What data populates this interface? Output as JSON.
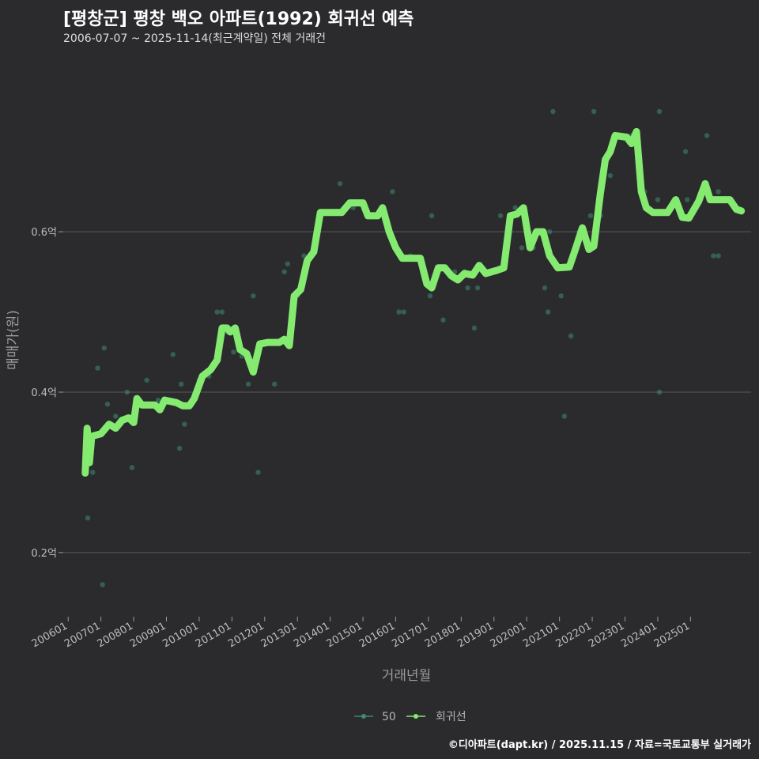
{
  "colors": {
    "background": "#2b2b2d",
    "grid": "#5a5a5a",
    "curve": "#84ea70",
    "points": "#3f8a72"
  },
  "chart_data": {
    "type": "line",
    "title": "[평창군] 평창 백오 아파트(1992) 회귀선 예측",
    "subtitle": "2006-07-07 ~ 2025-11-14(최근계약일) 전체 거래건",
    "xlabel": "거래년월",
    "ylabel": "매매가(원)",
    "xlim": [
      2005.85,
      2026.85
    ],
    "ylim": [
      0.12,
      0.82
    ],
    "y_ticks": [
      {
        "value": 0.2,
        "label": "0.2억"
      },
      {
        "value": 0.4,
        "label": "0.4억"
      },
      {
        "value": 0.6,
        "label": "0.6억"
      }
    ],
    "x_ticks": [
      {
        "value": 2006,
        "label": "200601"
      },
      {
        "value": 2007,
        "label": "200701"
      },
      {
        "value": 2008,
        "label": "200801"
      },
      {
        "value": 2009,
        "label": "200901"
      },
      {
        "value": 2010,
        "label": "201001"
      },
      {
        "value": 2011,
        "label": "201101"
      },
      {
        "value": 2012,
        "label": "201201"
      },
      {
        "value": 2013,
        "label": "201301"
      },
      {
        "value": 2014,
        "label": "201401"
      },
      {
        "value": 2015,
        "label": "201501"
      },
      {
        "value": 2016,
        "label": "201601"
      },
      {
        "value": 2017,
        "label": "201701"
      },
      {
        "value": 2018,
        "label": "201801"
      },
      {
        "value": 2019,
        "label": "201901"
      },
      {
        "value": 2020,
        "label": "202001"
      },
      {
        "value": 2021,
        "label": "202101"
      },
      {
        "value": 2022,
        "label": "202201"
      },
      {
        "value": 2023,
        "label": "202301"
      },
      {
        "value": 2024,
        "label": "202401"
      },
      {
        "value": 2025,
        "label": "202501"
      }
    ],
    "legend": [
      {
        "name": "50",
        "color": "#3f8a72"
      },
      {
        "name": "회귀선",
        "color": "#84ea70"
      }
    ],
    "series": [
      {
        "name": "50",
        "type": "scatter",
        "points": [
          [
            2006.6,
            0.243
          ],
          [
            2006.75,
            0.3
          ],
          [
            2006.9,
            0.43
          ],
          [
            2007.05,
            0.16
          ],
          [
            2007.1,
            0.455
          ],
          [
            2007.2,
            0.385
          ],
          [
            2007.45,
            0.37
          ],
          [
            2007.6,
            0.365
          ],
          [
            2007.8,
            0.4
          ],
          [
            2007.95,
            0.306
          ],
          [
            2008.4,
            0.415
          ],
          [
            2008.75,
            0.39
          ],
          [
            2009.2,
            0.447
          ],
          [
            2009.4,
            0.33
          ],
          [
            2009.45,
            0.41
          ],
          [
            2009.55,
            0.36
          ],
          [
            2010.0,
            0.415
          ],
          [
            2010.3,
            0.42
          ],
          [
            2010.55,
            0.5
          ],
          [
            2010.7,
            0.5
          ],
          [
            2010.85,
            0.475
          ],
          [
            2011.05,
            0.45
          ],
          [
            2011.3,
            0.445
          ],
          [
            2011.5,
            0.41
          ],
          [
            2011.65,
            0.52
          ],
          [
            2011.8,
            0.3
          ],
          [
            2011.95,
            0.46
          ],
          [
            2012.3,
            0.41
          ],
          [
            2012.6,
            0.55
          ],
          [
            2012.7,
            0.56
          ],
          [
            2013.0,
            0.52
          ],
          [
            2013.2,
            0.57
          ],
          [
            2013.55,
            0.59
          ],
          [
            2014.3,
            0.66
          ],
          [
            2014.7,
            0.63
          ],
          [
            2015.2,
            0.62
          ],
          [
            2015.9,
            0.65
          ],
          [
            2016.1,
            0.5
          ],
          [
            2016.25,
            0.5
          ],
          [
            2016.45,
            0.57
          ],
          [
            2016.9,
            0.54
          ],
          [
            2017.05,
            0.52
          ],
          [
            2017.1,
            0.62
          ],
          [
            2017.45,
            0.49
          ],
          [
            2017.8,
            0.55
          ],
          [
            2018.1,
            0.55
          ],
          [
            2018.2,
            0.53
          ],
          [
            2018.4,
            0.48
          ],
          [
            2018.5,
            0.53
          ],
          [
            2018.9,
            0.55
          ],
          [
            2019.2,
            0.62
          ],
          [
            2019.65,
            0.63
          ],
          [
            2019.85,
            0.58
          ],
          [
            2020.2,
            0.58
          ],
          [
            2020.55,
            0.53
          ],
          [
            2020.65,
            0.5
          ],
          [
            2020.7,
            0.6
          ],
          [
            2020.8,
            0.75
          ],
          [
            2021.05,
            0.52
          ],
          [
            2021.15,
            0.37
          ],
          [
            2021.35,
            0.47
          ],
          [
            2021.6,
            0.6
          ],
          [
            2021.95,
            0.62
          ],
          [
            2022.05,
            0.75
          ],
          [
            2022.25,
            0.62
          ],
          [
            2022.55,
            0.67
          ],
          [
            2022.75,
            0.72
          ],
          [
            2023.2,
            0.72
          ],
          [
            2023.6,
            0.65
          ],
          [
            2024.0,
            0.64
          ],
          [
            2024.05,
            0.75
          ],
          [
            2024.05,
            0.4
          ],
          [
            2024.85,
            0.7
          ],
          [
            2024.9,
            0.64
          ],
          [
            2025.5,
            0.72
          ],
          [
            2025.7,
            0.57
          ],
          [
            2025.85,
            0.57
          ],
          [
            2025.85,
            0.65
          ]
        ]
      },
      {
        "name": "회귀선",
        "type": "line",
        "points": [
          [
            2006.52,
            0.299
          ],
          [
            2006.58,
            0.355
          ],
          [
            2006.65,
            0.312
          ],
          [
            2006.72,
            0.345
          ],
          [
            2007.0,
            0.348
          ],
          [
            2007.25,
            0.36
          ],
          [
            2007.45,
            0.355
          ],
          [
            2007.65,
            0.365
          ],
          [
            2007.85,
            0.368
          ],
          [
            2008.0,
            0.362
          ],
          [
            2008.1,
            0.392
          ],
          [
            2008.25,
            0.384
          ],
          [
            2008.65,
            0.384
          ],
          [
            2008.8,
            0.378
          ],
          [
            2008.95,
            0.39
          ],
          [
            2009.3,
            0.387
          ],
          [
            2009.5,
            0.383
          ],
          [
            2009.7,
            0.383
          ],
          [
            2009.85,
            0.392
          ],
          [
            2010.1,
            0.42
          ],
          [
            2010.35,
            0.428
          ],
          [
            2010.55,
            0.44
          ],
          [
            2010.7,
            0.48
          ],
          [
            2010.85,
            0.48
          ],
          [
            2010.95,
            0.475
          ],
          [
            2011.1,
            0.48
          ],
          [
            2011.25,
            0.453
          ],
          [
            2011.45,
            0.448
          ],
          [
            2011.65,
            0.425
          ],
          [
            2011.85,
            0.46
          ],
          [
            2012.1,
            0.462
          ],
          [
            2012.45,
            0.462
          ],
          [
            2012.6,
            0.466
          ],
          [
            2012.75,
            0.458
          ],
          [
            2012.9,
            0.52
          ],
          [
            2013.1,
            0.528
          ],
          [
            2013.3,
            0.564
          ],
          [
            2013.5,
            0.575
          ],
          [
            2013.7,
            0.624
          ],
          [
            2014.35,
            0.624
          ],
          [
            2014.6,
            0.636
          ],
          [
            2015.0,
            0.636
          ],
          [
            2015.15,
            0.62
          ],
          [
            2015.45,
            0.62
          ],
          [
            2015.6,
            0.63
          ],
          [
            2015.8,
            0.6
          ],
          [
            2016.0,
            0.58
          ],
          [
            2016.2,
            0.567
          ],
          [
            2016.5,
            0.567
          ],
          [
            2016.75,
            0.567
          ],
          [
            2016.95,
            0.535
          ],
          [
            2017.1,
            0.53
          ],
          [
            2017.3,
            0.555
          ],
          [
            2017.5,
            0.555
          ],
          [
            2017.7,
            0.545
          ],
          [
            2017.9,
            0.54
          ],
          [
            2018.1,
            0.548
          ],
          [
            2018.35,
            0.546
          ],
          [
            2018.55,
            0.558
          ],
          [
            2018.75,
            0.548
          ],
          [
            2019.1,
            0.552
          ],
          [
            2019.3,
            0.555
          ],
          [
            2019.5,
            0.62
          ],
          [
            2019.7,
            0.622
          ],
          [
            2019.9,
            0.63
          ],
          [
            2020.1,
            0.58
          ],
          [
            2020.3,
            0.6
          ],
          [
            2020.5,
            0.6
          ],
          [
            2020.7,
            0.57
          ],
          [
            2020.95,
            0.555
          ],
          [
            2021.3,
            0.556
          ],
          [
            2021.5,
            0.58
          ],
          [
            2021.7,
            0.605
          ],
          [
            2021.9,
            0.578
          ],
          [
            2022.05,
            0.582
          ],
          [
            2022.25,
            0.648
          ],
          [
            2022.4,
            0.69
          ],
          [
            2022.55,
            0.7
          ],
          [
            2022.7,
            0.72
          ],
          [
            2023.05,
            0.718
          ],
          [
            2023.2,
            0.71
          ],
          [
            2023.35,
            0.725
          ],
          [
            2023.5,
            0.65
          ],
          [
            2023.65,
            0.63
          ],
          [
            2023.85,
            0.624
          ],
          [
            2024.3,
            0.624
          ],
          [
            2024.55,
            0.64
          ],
          [
            2024.75,
            0.618
          ],
          [
            2024.95,
            0.617
          ],
          [
            2025.25,
            0.638
          ],
          [
            2025.45,
            0.66
          ],
          [
            2025.6,
            0.64
          ],
          [
            2025.85,
            0.64
          ],
          [
            2026.2,
            0.64
          ],
          [
            2026.4,
            0.628
          ],
          [
            2026.55,
            0.626
          ]
        ]
      }
    ]
  },
  "caption": "©디아파트(dapt.kr) / 2025.11.15 / 자료=국토교통부 실거래가"
}
